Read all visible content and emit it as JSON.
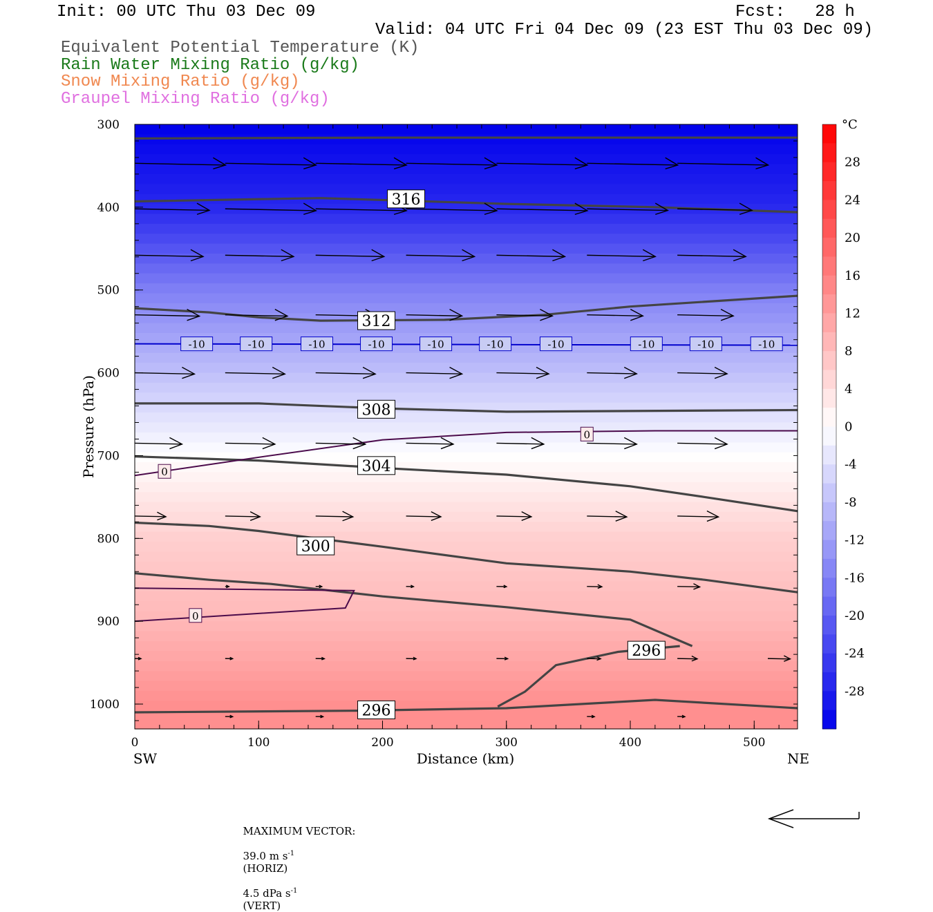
{
  "header": {
    "init": "Init: 00 UTC Thu 03 Dec 09",
    "fcst": "Fcst:   28 h",
    "valid": "Valid: 04 UTC Fri 04 Dec 09 (23 EST Thu 03 Dec 09)"
  },
  "legend": {
    "items": [
      {
        "label": "Equivalent Potential Temperature (K)",
        "color": "#555555"
      },
      {
        "label": "Rain Water Mixing Ratio (g/kg)",
        "color": "#1a7a1a"
      },
      {
        "label": "Snow Mixing Ratio (g/kg)",
        "color": "#f08850"
      },
      {
        "label": "Graupel Mixing Ratio (g/kg)",
        "color": "#e070e0"
      }
    ]
  },
  "footer": {
    "max_vector_label": "MAXIMUM VECTOR:",
    "horiz": "39.0 m s",
    "horiz_suffix": "(HORIZ)",
    "vert": "4.5 dPa s",
    "vert_suffix": "(VERT)",
    "exp": "-1"
  },
  "chart_data": {
    "type": "heatmap",
    "title": "",
    "xlabel": "Distance (km)",
    "ylabel": "Pressure (hPa)",
    "xlim": [
      0,
      535
    ],
    "ylim": [
      1030,
      300
    ],
    "x_ticks": [
      0,
      100,
      200,
      300,
      400,
      500
    ],
    "y_ticks": [
      300,
      400,
      500,
      600,
      700,
      800,
      900,
      1000
    ],
    "x_end_labels": {
      "left": "SW",
      "right": "NE"
    },
    "colorbar": {
      "unit": "°C",
      "range": [
        -32,
        32
      ],
      "step": 2,
      "tick_labels": [
        28,
        24,
        20,
        16,
        12,
        8,
        4,
        0,
        -4,
        -8,
        -12,
        -16,
        -20,
        -24,
        -28
      ]
    },
    "temperature_field_deg_c": {
      "pressure_levels": [
        300,
        400,
        500,
        600,
        700,
        800,
        900,
        1000
      ],
      "values": [
        -32,
        -27,
        -16,
        -8,
        0,
        6,
        9,
        14
      ]
    },
    "theta_e_contours_K": [
      {
        "value": 316,
        "points": [
          [
            0,
            317
          ],
          [
            200,
            316
          ],
          [
            300,
            316
          ],
          [
            535,
            316
          ]
        ]
      },
      {
        "value": 316,
        "points": [
          [
            0,
            393
          ],
          [
            150,
            389
          ],
          [
            300,
            396
          ],
          [
            420,
            400
          ],
          [
            535,
            406
          ]
        ]
      },
      {
        "value": 312,
        "points": [
          [
            0,
            522
          ],
          [
            60,
            527
          ],
          [
            100,
            533
          ],
          [
            150,
            537
          ],
          [
            250,
            536
          ],
          [
            330,
            530
          ],
          [
            400,
            520
          ],
          [
            535,
            507
          ]
        ]
      },
      {
        "value": 308,
        "points": [
          [
            0,
            637
          ],
          [
            100,
            637
          ],
          [
            200,
            643
          ],
          [
            300,
            647
          ],
          [
            535,
            645
          ]
        ]
      },
      {
        "value": 304,
        "points": [
          [
            0,
            701
          ],
          [
            100,
            706
          ],
          [
            200,
            715
          ],
          [
            300,
            723
          ],
          [
            400,
            737
          ],
          [
            460,
            750
          ],
          [
            535,
            767
          ]
        ]
      },
      {
        "value": 300,
        "points": [
          [
            0,
            781
          ],
          [
            60,
            785
          ],
          [
            100,
            791
          ],
          [
            200,
            810
          ],
          [
            300,
            830
          ],
          [
            400,
            840
          ],
          [
            460,
            850
          ],
          [
            535,
            865
          ]
        ]
      },
      {
        "value": 296,
        "points": [
          [
            0,
            842
          ],
          [
            60,
            850
          ],
          [
            110,
            855
          ],
          [
            200,
            870
          ],
          [
            300,
            883
          ],
          [
            400,
            898
          ],
          [
            450,
            930
          ]
        ]
      },
      {
        "value": 296,
        "points": [
          [
            293,
            1003
          ],
          [
            315,
            985
          ],
          [
            340,
            953
          ],
          [
            390,
            937
          ],
          [
            440,
            930
          ]
        ]
      },
      {
        "value": 296,
        "points": [
          [
            0,
            1010
          ],
          [
            180,
            1008
          ],
          [
            300,
            1005
          ],
          [
            420,
            995
          ],
          [
            535,
            1005
          ]
        ]
      }
    ],
    "isotherm_labels": [
      {
        "value": -10,
        "pressure": 565,
        "x": [
          50,
          98,
          147,
          195,
          243,
          291,
          340,
          413,
          461,
          510
        ]
      },
      {
        "value": 0,
        "pressure": 674,
        "x": [
          365
        ]
      },
      {
        "value": 0,
        "pressure": 719,
        "x": [
          24
        ]
      },
      {
        "value": 0,
        "pressure": 893,
        "x": [
          49
        ]
      }
    ],
    "contour_labels": [
      {
        "text": "316",
        "x": 219,
        "p": 390
      },
      {
        "text": "312",
        "x": 195,
        "p": 537
      },
      {
        "text": "308",
        "x": 195,
        "p": 644
      },
      {
        "text": "304",
        "x": 195,
        "p": 712
      },
      {
        "text": "300",
        "x": 146,
        "p": 809
      },
      {
        "text": "296",
        "x": 413,
        "p": 935
      },
      {
        "text": "296",
        "x": 195,
        "p": 1007
      }
    ],
    "wind_vectors": [
      {
        "p": 347,
        "x0": 0,
        "len": 73
      },
      {
        "p": 347,
        "x0": 73,
        "len": 73
      },
      {
        "p": 347,
        "x0": 146,
        "len": 73
      },
      {
        "p": 347,
        "x0": 219,
        "len": 73
      },
      {
        "p": 347,
        "x0": 292,
        "len": 73
      },
      {
        "p": 347,
        "x0": 365,
        "len": 73
      },
      {
        "p": 347,
        "x0": 438,
        "len": 73
      },
      {
        "p": 402,
        "x0": 0,
        "len": 60
      },
      {
        "p": 402,
        "x0": 73,
        "len": 73
      },
      {
        "p": 402,
        "x0": 146,
        "len": 73
      },
      {
        "p": 402,
        "x0": 219,
        "len": 73
      },
      {
        "p": 402,
        "x0": 292,
        "len": 73
      },
      {
        "p": 402,
        "x0": 365,
        "len": 65
      },
      {
        "p": 402,
        "x0": 438,
        "len": 60
      },
      {
        "p": 458,
        "x0": 0,
        "len": 55
      },
      {
        "p": 458,
        "x0": 73,
        "len": 55
      },
      {
        "p": 458,
        "x0": 146,
        "len": 55
      },
      {
        "p": 458,
        "x0": 219,
        "len": 55
      },
      {
        "p": 458,
        "x0": 292,
        "len": 55
      },
      {
        "p": 458,
        "x0": 365,
        "len": 55
      },
      {
        "p": 458,
        "x0": 438,
        "len": 55
      },
      {
        "p": 530,
        "x0": 0,
        "len": 52
      },
      {
        "p": 530,
        "x0": 73,
        "len": 50
      },
      {
        "p": 530,
        "x0": 146,
        "len": 50
      },
      {
        "p": 530,
        "x0": 219,
        "len": 45
      },
      {
        "p": 530,
        "x0": 292,
        "len": 45
      },
      {
        "p": 530,
        "x0": 365,
        "len": 45
      },
      {
        "p": 530,
        "x0": 438,
        "len": 45
      },
      {
        "p": 600,
        "x0": 0,
        "len": 48
      },
      {
        "p": 600,
        "x0": 73,
        "len": 48
      },
      {
        "p": 600,
        "x0": 146,
        "len": 48
      },
      {
        "p": 600,
        "x0": 219,
        "len": 45
      },
      {
        "p": 600,
        "x0": 292,
        "len": 42
      },
      {
        "p": 600,
        "x0": 365,
        "len": 40
      },
      {
        "p": 600,
        "x0": 438,
        "len": 40
      },
      {
        "p": 685,
        "x0": 0,
        "len": 38
      },
      {
        "p": 685,
        "x0": 73,
        "len": 40
      },
      {
        "p": 685,
        "x0": 146,
        "len": 40
      },
      {
        "p": 685,
        "x0": 219,
        "len": 38
      },
      {
        "p": 685,
        "x0": 292,
        "len": 38
      },
      {
        "p": 685,
        "x0": 365,
        "len": 40
      },
      {
        "p": 685,
        "x0": 438,
        "len": 40
      },
      {
        "p": 773,
        "x0": 0,
        "len": 25
      },
      {
        "p": 773,
        "x0": 73,
        "len": 28
      },
      {
        "p": 773,
        "x0": 146,
        "len": 30
      },
      {
        "p": 773,
        "x0": 219,
        "len": 28
      },
      {
        "p": 773,
        "x0": 292,
        "len": 28
      },
      {
        "p": 773,
        "x0": 365,
        "len": 32
      },
      {
        "p": 773,
        "x0": 438,
        "len": 33
      },
      {
        "p": 858,
        "x0": 73,
        "len": 3
      },
      {
        "p": 858,
        "x0": 146,
        "len": 5
      },
      {
        "p": 858,
        "x0": 219,
        "len": 6
      },
      {
        "p": 858,
        "x0": 292,
        "len": 8
      },
      {
        "p": 858,
        "x0": 365,
        "len": 12
      },
      {
        "p": 858,
        "x0": 438,
        "len": 18
      },
      {
        "p": 945,
        "x0": 0,
        "len": 5
      },
      {
        "p": 945,
        "x0": 73,
        "len": 6
      },
      {
        "p": 945,
        "x0": 146,
        "len": 7
      },
      {
        "p": 945,
        "x0": 219,
        "len": 8
      },
      {
        "p": 945,
        "x0": 292,
        "len": 9
      },
      {
        "p": 945,
        "x0": 365,
        "len": 11
      },
      {
        "p": 945,
        "x0": 438,
        "len": 16
      },
      {
        "p": 945,
        "x0": 511,
        "len": 18
      },
      {
        "p": 1015,
        "x0": 73,
        "len": 6
      },
      {
        "p": 1015,
        "x0": 146,
        "len": 6
      },
      {
        "p": 1015,
        "x0": 365,
        "len": 6
      },
      {
        "p": 1015,
        "x0": 438,
        "len": 6
      }
    ]
  }
}
